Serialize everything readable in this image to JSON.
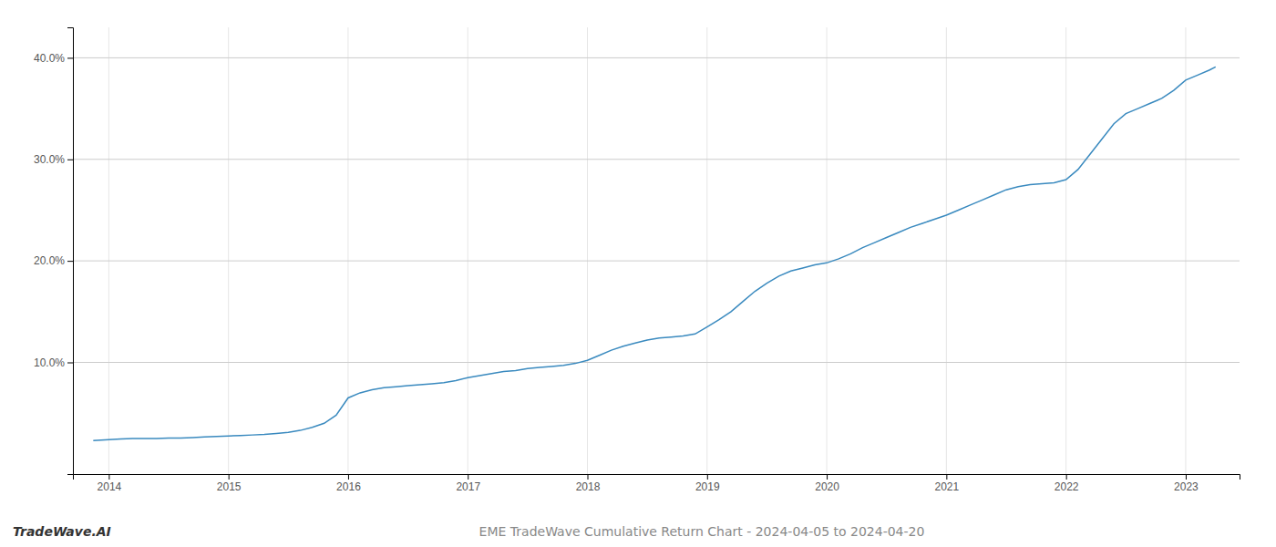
{
  "chart_data": {
    "type": "line",
    "title": "EME TradeWave Cumulative Return Chart - 2024-04-05 to 2024-04-20",
    "annotations": [
      "TradeWave.AI"
    ],
    "color": "#3a8abf",
    "grid": true,
    "x": [
      2013.87,
      2014.0,
      2014.1,
      2014.2,
      2014.3,
      2014.4,
      2014.5,
      2014.6,
      2014.7,
      2014.8,
      2014.9,
      2015.0,
      2015.1,
      2015.2,
      2015.3,
      2015.4,
      2015.5,
      2015.6,
      2015.7,
      2015.8,
      2015.9,
      2016.0,
      2016.1,
      2016.2,
      2016.3,
      2016.4,
      2016.5,
      2016.6,
      2016.7,
      2016.8,
      2016.9,
      2017.0,
      2017.1,
      2017.2,
      2017.3,
      2017.4,
      2017.5,
      2017.6,
      2017.7,
      2017.8,
      2017.9,
      2018.0,
      2018.1,
      2018.2,
      2018.3,
      2018.4,
      2018.5,
      2018.6,
      2018.7,
      2018.8,
      2018.9,
      2019.0,
      2019.1,
      2019.2,
      2019.3,
      2019.4,
      2019.5,
      2019.6,
      2019.7,
      2019.8,
      2019.9,
      2020.0,
      2020.1,
      2020.2,
      2020.3,
      2020.4,
      2020.5,
      2020.6,
      2020.7,
      2020.8,
      2020.9,
      2021.0,
      2021.1,
      2021.2,
      2021.3,
      2021.4,
      2021.5,
      2021.6,
      2021.7,
      2021.8,
      2021.9,
      2022.0,
      2022.1,
      2022.2,
      2022.3,
      2022.4,
      2022.5,
      2022.6,
      2022.7,
      2022.8,
      2022.9,
      2023.0,
      2023.1,
      2023.2,
      2023.25
    ],
    "values": [
      2.3,
      2.4,
      2.45,
      2.5,
      2.5,
      2.5,
      2.55,
      2.55,
      2.6,
      2.65,
      2.7,
      2.75,
      2.8,
      2.85,
      2.9,
      3.0,
      3.1,
      3.3,
      3.6,
      4.0,
      4.8,
      6.5,
      7.0,
      7.3,
      7.5,
      7.6,
      7.7,
      7.8,
      7.9,
      8.0,
      8.2,
      8.5,
      8.7,
      8.9,
      9.1,
      9.2,
      9.4,
      9.5,
      9.6,
      9.7,
      9.9,
      10.2,
      10.7,
      11.2,
      11.6,
      11.9,
      12.2,
      12.4,
      12.5,
      12.6,
      12.8,
      13.5,
      14.2,
      15.0,
      16.0,
      17.0,
      17.8,
      18.5,
      19.0,
      19.3,
      19.6,
      19.8,
      20.2,
      20.7,
      21.3,
      21.8,
      22.3,
      22.8,
      23.3,
      23.7,
      24.1,
      24.5,
      25.0,
      25.5,
      26.0,
      26.5,
      27.0,
      27.3,
      27.5,
      27.6,
      27.7,
      28.0,
      29.0,
      30.5,
      32.0,
      33.5,
      34.5,
      35.0,
      35.5,
      36.0,
      36.8,
      37.8,
      38.3,
      38.8,
      39.1
    ],
    "xlim": [
      2013.7,
      2023.45
    ],
    "ylim": [
      -1,
      43
    ],
    "xticks": [
      2014,
      2015,
      2016,
      2017,
      2018,
      2019,
      2020,
      2021,
      2022,
      2023
    ],
    "yticks": [
      {
        "value": 10.0,
        "label": "10.0%"
      },
      {
        "value": 20.0,
        "label": "20.0%"
      },
      {
        "value": 30.0,
        "label": "30.0%"
      },
      {
        "value": 40.0,
        "label": "40.0%"
      }
    ]
  }
}
